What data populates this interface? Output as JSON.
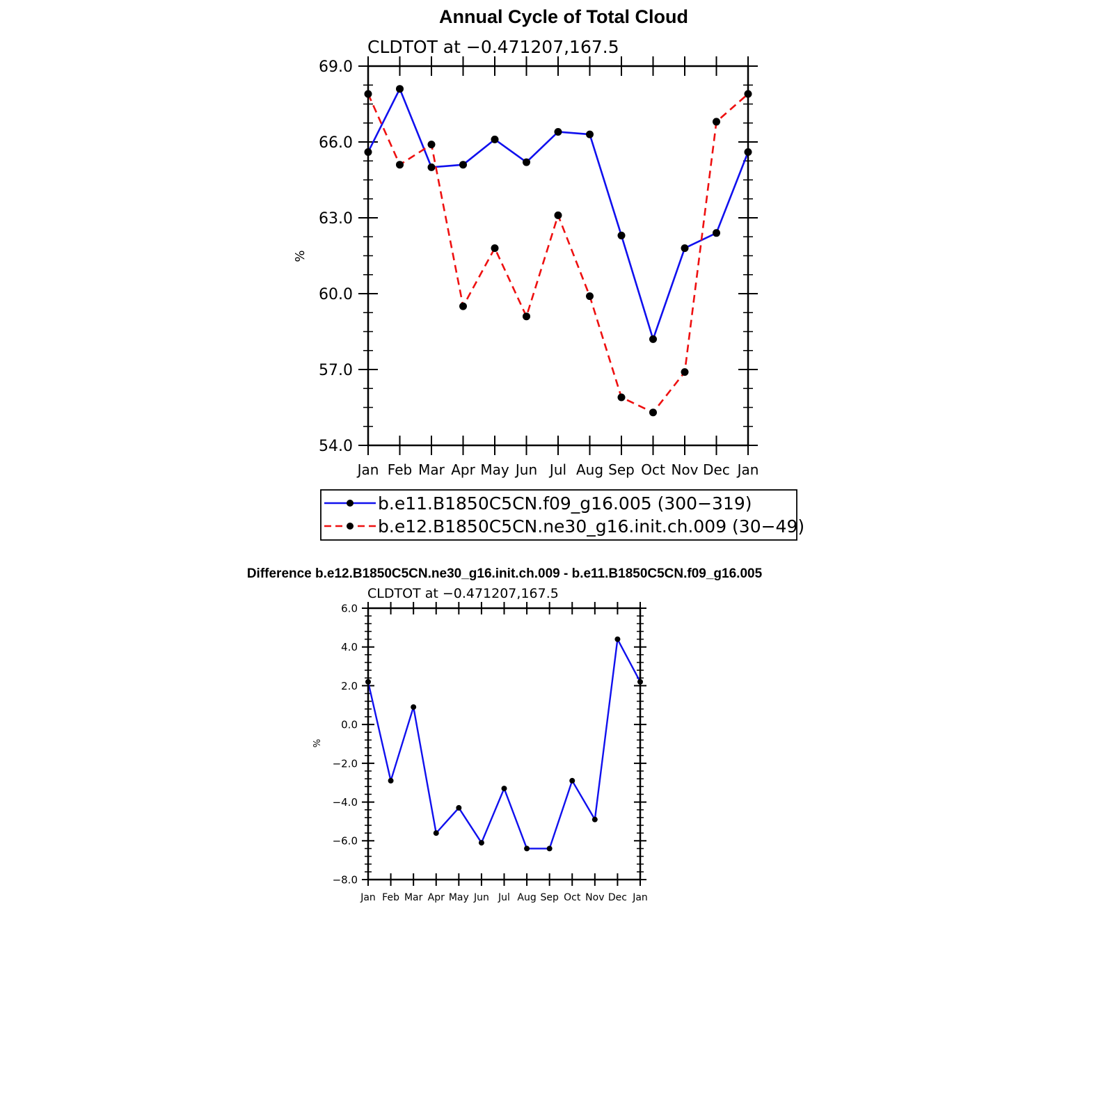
{
  "chart_data": [
    {
      "type": "line",
      "title": "Annual Cycle of Total Cloud",
      "subtitle": "CLDTOT at −0.471207,167.5",
      "ylabel": "%",
      "xlabel": "",
      "categories": [
        "Jan",
        "Feb",
        "Mar",
        "Apr",
        "May",
        "Jun",
        "Jul",
        "Aug",
        "Sep",
        "Oct",
        "Nov",
        "Dec",
        "Jan"
      ],
      "ylim": [
        54.0,
        69.0
      ],
      "yticks": [
        "54.0",
        "57.0",
        "60.0",
        "63.0",
        "66.0",
        "69.0"
      ],
      "ytick_values": [
        54,
        57,
        60,
        63,
        66,
        69
      ],
      "series": [
        {
          "name": "b.e11.B1850C5CN.f09_g16.005 (300−319)",
          "color": "#1010ee",
          "dash": "solid",
          "values": [
            65.6,
            68.1,
            65.0,
            65.1,
            66.1,
            65.2,
            66.4,
            66.3,
            62.3,
            58.2,
            61.8,
            62.4,
            65.6
          ]
        },
        {
          "name": "b.e12.B1850C5CN.ne30_g16.init.ch.009 (30−49)",
          "color": "#ee1010",
          "dash": "dashed",
          "values": [
            67.9,
            65.1,
            65.9,
            59.5,
            61.8,
            59.1,
            63.1,
            59.9,
            55.9,
            55.3,
            56.9,
            66.8,
            67.9
          ]
        }
      ]
    },
    {
      "type": "line",
      "title": "Difference b.e12.B1850C5CN.ne30_g16.init.ch.009 - b.e11.B1850C5CN.f09_g16.005",
      "subtitle": "CLDTOT at −0.471207,167.5",
      "ylabel": "%",
      "xlabel": "",
      "categories": [
        "Jan",
        "Feb",
        "Mar",
        "Apr",
        "May",
        "Jun",
        "Jul",
        "Aug",
        "Sep",
        "Oct",
        "Nov",
        "Dec",
        "Jan"
      ],
      "ylim": [
        -8.0,
        6.0
      ],
      "yticks": [
        "−8.0",
        "−6.0",
        "−4.0",
        "−2.0",
        "0.0",
        "2.0",
        "4.0",
        "6.0"
      ],
      "ytick_values": [
        -8,
        -6,
        -4,
        -2,
        0,
        2,
        4,
        6
      ],
      "series": [
        {
          "name": "Difference",
          "color": "#1010ee",
          "dash": "solid",
          "values": [
            2.2,
            -2.9,
            0.9,
            -5.6,
            -4.3,
            -6.1,
            -3.3,
            -6.4,
            -6.4,
            -2.9,
            -4.9,
            4.4,
            2.2
          ]
        }
      ]
    }
  ]
}
